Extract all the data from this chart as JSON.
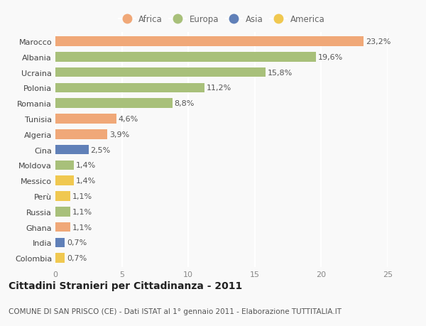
{
  "countries": [
    "Marocco",
    "Albania",
    "Ucraina",
    "Polonia",
    "Romania",
    "Tunisia",
    "Algeria",
    "Cina",
    "Moldova",
    "Messico",
    "Perù",
    "Russia",
    "Ghana",
    "India",
    "Colombia"
  ],
  "values": [
    23.2,
    19.6,
    15.8,
    11.2,
    8.8,
    4.6,
    3.9,
    2.5,
    1.4,
    1.4,
    1.1,
    1.1,
    1.1,
    0.7,
    0.7
  ],
  "labels": [
    "23,2%",
    "19,6%",
    "15,8%",
    "11,2%",
    "8,8%",
    "4,6%",
    "3,9%",
    "2,5%",
    "1,4%",
    "1,4%",
    "1,1%",
    "1,1%",
    "1,1%",
    "0,7%",
    "0,7%"
  ],
  "continents": [
    "Africa",
    "Europa",
    "Europa",
    "Europa",
    "Europa",
    "Africa",
    "Africa",
    "Asia",
    "Europa",
    "America",
    "America",
    "Europa",
    "Africa",
    "Asia",
    "America"
  ],
  "continent_colors": {
    "Africa": "#F0A878",
    "Europa": "#A8C07A",
    "Asia": "#6080B8",
    "America": "#F0C850"
  },
  "legend_order": [
    "Africa",
    "Europa",
    "Asia",
    "America"
  ],
  "xlim": [
    0,
    25
  ],
  "xticks": [
    0,
    5,
    10,
    15,
    20,
    25
  ],
  "title": "Cittadini Stranieri per Cittadinanza - 2011",
  "subtitle": "COMUNE DI SAN PRISCO (CE) - Dati ISTAT al 1° gennaio 2011 - Elaborazione TUTTITALIA.IT",
  "background_color": "#f9f9f9",
  "bar_height": 0.62,
  "label_fontsize": 8,
  "tick_fontsize": 8,
  "title_fontsize": 10,
  "subtitle_fontsize": 7.5
}
